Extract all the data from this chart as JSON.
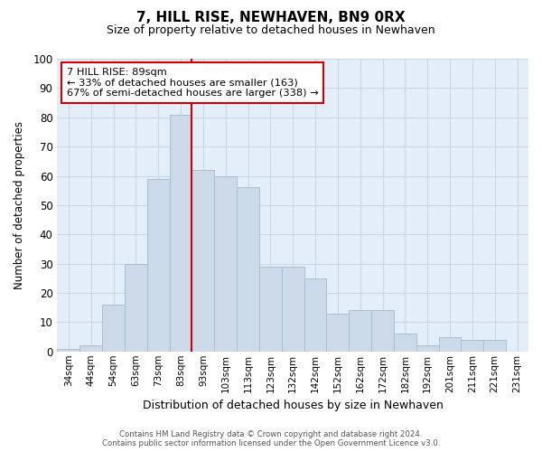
{
  "title": "7, HILL RISE, NEWHAVEN, BN9 0RX",
  "subtitle": "Size of property relative to detached houses in Newhaven",
  "xlabel": "Distribution of detached houses by size in Newhaven",
  "ylabel": "Number of detached properties",
  "bar_labels": [
    "34sqm",
    "44sqm",
    "54sqm",
    "63sqm",
    "73sqm",
    "83sqm",
    "93sqm",
    "103sqm",
    "113sqm",
    "123sqm",
    "132sqm",
    "142sqm",
    "152sqm",
    "162sqm",
    "172sqm",
    "182sqm",
    "192sqm",
    "201sqm",
    "211sqm",
    "221sqm",
    "231sqm"
  ],
  "bar_values": [
    1,
    2,
    16,
    30,
    59,
    81,
    62,
    60,
    56,
    29,
    29,
    25,
    13,
    14,
    14,
    6,
    2,
    5,
    4,
    4,
    0
  ],
  "bar_color": "#ccd9e8",
  "bar_edge_color": "#a8bfd0",
  "vline_color": "#cc0000",
  "annotation_line1": "7 HILL RISE: 89sqm",
  "annotation_line2": "← 33% of detached houses are smaller (163)",
  "annotation_line3": "67% of semi-detached houses are larger (338) →",
  "annotation_box_color": "#ffffff",
  "annotation_box_edge": "#cc0000",
  "ylim": [
    0,
    100
  ],
  "yticks": [
    0,
    10,
    20,
    30,
    40,
    50,
    60,
    70,
    80,
    90,
    100
  ],
  "grid_color": "#c8d8e8",
  "bg_color": "#e4eef8",
  "footer_line1": "Contains HM Land Registry data © Crown copyright and database right 2024.",
  "footer_line2": "Contains public sector information licensed under the Open Government Licence v3.0."
}
